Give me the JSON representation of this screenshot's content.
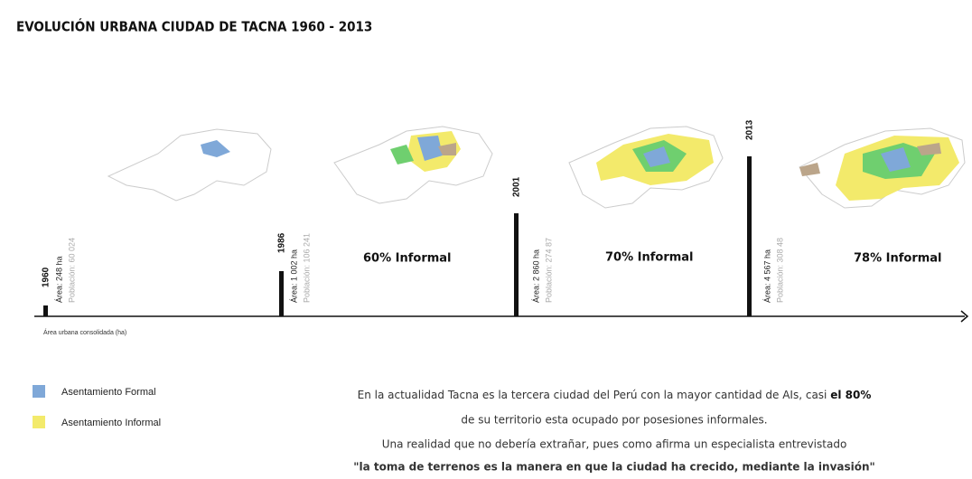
{
  "title": "EVOLUCIÓN URBANA CIUDAD DE TACNA 1960 - 2013",
  "timeline": {
    "axis_label": "Área urbana consolidada (ha)",
    "periods": [
      {
        "year": "1960",
        "area": "Área: 248 ha",
        "population": "Población: 60 024"
      },
      {
        "year": "1986",
        "area": "Área: 1 002 ha",
        "population": "Población: 106 241",
        "informal": "60% Informal"
      },
      {
        "year": "2001",
        "area": "Área: 2 860 ha",
        "population": "Población: 274 87",
        "informal": "70% Informal"
      },
      {
        "year": "2013",
        "area": "Área: 4 567 ha",
        "population": "Población: 308 48",
        "informal": "78% Informal"
      }
    ]
  },
  "legend": [
    "Asentamiento Formal",
    "Asentamiento Informal"
  ],
  "text": {
    "line1": "En la actualidad Tacna es la tercera ciudad del Perú con la mayor cantidad de AIs, casi ",
    "line1_bold": "el 80%",
    "line2": "de su territorio esta ocupado por posesiones informales.",
    "line3": "Una realidad que no debería extrañar, pues como afirma un especialista entrevistado",
    "line4": "\"la toma de terrenos es la manera en que la ciudad ha crecido, mediante la invasión\""
  }
}
